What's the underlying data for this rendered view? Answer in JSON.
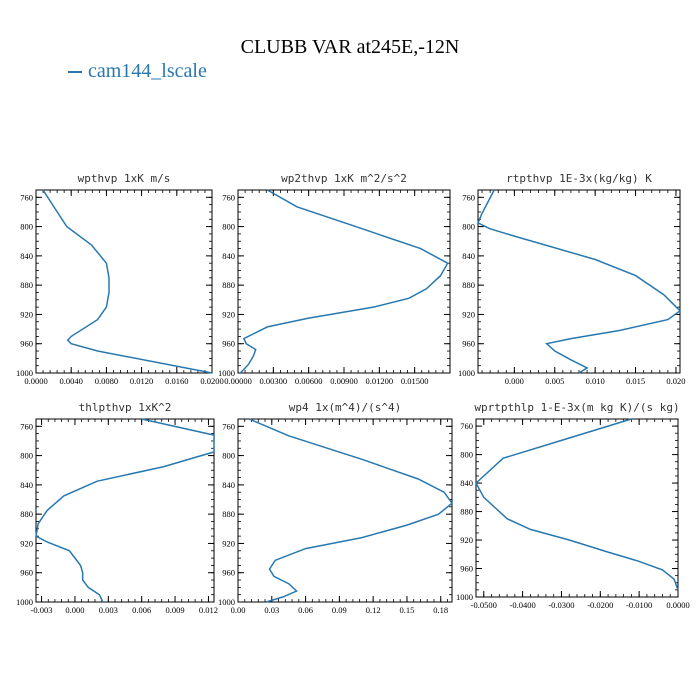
{
  "figure": {
    "title": "CLUBB VAR at245E,-12N",
    "legend": "cam144_lscale",
    "line_color": "#2878b0"
  },
  "chart_data": [
    {
      "type": "line",
      "title": "wpthvp  1xK m/s",
      "ylim": [
        1000,
        750
      ],
      "xlim": [
        0,
        0.02
      ],
      "xticks": [
        0,
        0.004,
        0.008,
        0.012,
        0.016,
        0.02
      ],
      "xtick_labels": [
        "0.0000",
        "0.0040",
        "0.0080",
        "0.0120",
        "0.0160",
        "0.0200"
      ],
      "yticks": [
        760,
        800,
        840,
        880,
        920,
        960,
        1000
      ],
      "series": [
        {
          "x": [
            0.0008,
            0.0035,
            0.0063,
            0.008,
            0.0083,
            0.0083,
            0.008,
            0.007,
            0.004,
            0.0036,
            0.004,
            0.007,
            0.02
          ],
          "y": [
            750,
            800,
            825,
            850,
            870,
            890,
            910,
            927,
            950,
            955,
            960,
            970,
            1000
          ]
        }
      ]
    },
    {
      "type": "line",
      "title": "wp2thvp  1xK m^2/s^2",
      "ylim": [
        1000,
        750
      ],
      "xlim": [
        0,
        0.018
      ],
      "xticks": [
        0,
        0.003,
        0.006,
        0.009,
        0.012,
        0.015
      ],
      "xtick_labels": [
        "0.00000",
        "0.00300",
        "0.00600",
        "0.00900",
        "0.01200",
        "0.01500"
      ],
      "yticks": [
        760,
        800,
        840,
        880,
        920,
        960,
        1000
      ],
      "series": [
        {
          "x": [
            0.0025,
            0.005,
            0.01,
            0.0155,
            0.0178,
            0.0172,
            0.016,
            0.0145,
            0.0115,
            0.006,
            0.0025,
            0.0005,
            0.0007,
            0.0015,
            0.0013,
            0.0009,
            0.0002
          ],
          "y": [
            750,
            773,
            800,
            830,
            850,
            867,
            885,
            898,
            910,
            925,
            937,
            953,
            960,
            968,
            977,
            988,
            1000
          ]
        }
      ]
    },
    {
      "type": "line",
      "title": "rtpthvp  1E-3x(kg/kg) K",
      "ylim": [
        1000,
        750
      ],
      "xlim": [
        -0.0045,
        0.0205
      ],
      "xticks": [
        0,
        0.005,
        0.01,
        0.015,
        0.02
      ],
      "xtick_labels": [
        "0.000",
        "0.005",
        "0.010",
        "0.015",
        "0.020"
      ],
      "yticks": [
        760,
        800,
        840,
        880,
        920,
        960,
        1000
      ],
      "series": [
        {
          "x": [
            -0.0025,
            -0.004,
            -0.0045,
            -0.003,
            0.0,
            0.01,
            0.015,
            0.0185,
            0.0205,
            0.019,
            0.013,
            0.007,
            0.004,
            0.005,
            0.007,
            0.009,
            0.008
          ],
          "y": [
            750,
            782,
            795,
            803,
            813,
            845,
            867,
            893,
            915,
            927,
            942,
            953,
            960,
            970,
            982,
            993,
            1000
          ]
        }
      ]
    },
    {
      "type": "line",
      "title": "thlpthvp  1xK^2",
      "ylim": [
        1000,
        750
      ],
      "xlim": [
        -0.0035,
        0.0125
      ],
      "xticks": [
        -0.003,
        0,
        0.003,
        0.006,
        0.009,
        0.012
      ],
      "xtick_labels": [
        "-0.003",
        "0.000",
        "0.003",
        "0.006",
        "0.009",
        "0.012"
      ],
      "yticks": [
        760,
        800,
        840,
        880,
        920,
        960,
        1000
      ],
      "series": [
        {
          "x": [
            0.006,
            0.0125,
            0.0125,
            0.008,
            0.002,
            -0.001,
            -0.0025,
            -0.0033,
            -0.0035,
            -0.0025,
            -0.0005,
            0.0005,
            0.0007,
            0.0007,
            0.0012,
            0.0022,
            0.0025
          ],
          "y": [
            750,
            772,
            795,
            815,
            835,
            855,
            875,
            893,
            910,
            918,
            930,
            950,
            960,
            970,
            980,
            990,
            1000
          ]
        }
      ]
    },
    {
      "type": "line",
      "title": "wp4  1x(m^4)/(s^4)",
      "ylim": [
        1000,
        750
      ],
      "xlim": [
        0,
        0.19
      ],
      "xticks": [
        0,
        0.03,
        0.06,
        0.09,
        0.12,
        0.15,
        0.18
      ],
      "xtick_labels": [
        "0.00",
        "0.03",
        "0.06",
        "0.09",
        "0.12",
        "0.15",
        "0.18"
      ],
      "yticks": [
        760,
        800,
        840,
        880,
        920,
        960,
        1000
      ],
      "series": [
        {
          "x": [
            0.01,
            0.045,
            0.11,
            0.16,
            0.183,
            0.19,
            0.178,
            0.15,
            0.11,
            0.06,
            0.033,
            0.028,
            0.032,
            0.045,
            0.052,
            0.04,
            0.025
          ],
          "y": [
            750,
            773,
            805,
            832,
            850,
            865,
            880,
            895,
            912,
            927,
            943,
            955,
            965,
            975,
            985,
            993,
            1000
          ]
        }
      ]
    },
    {
      "type": "line",
      "title": "wprtpthlp  1-E-3x(m kg K)/(s kg)",
      "ylim": [
        1000,
        750
      ],
      "xlim": [
        -0.052,
        0.0
      ],
      "xticks": [
        -0.05,
        -0.04,
        -0.03,
        -0.02,
        -0.01,
        0.0
      ],
      "xtick_labels": [
        "-0.0500",
        "-0.0400",
        "-0.0300",
        "-0.0200",
        "-0.0100",
        "0.0000"
      ],
      "yticks": [
        760,
        800,
        840,
        880,
        920,
        960,
        1000
      ],
      "series": [
        {
          "x": [
            -0.012,
            -0.03,
            -0.045,
            -0.052,
            -0.05,
            -0.047,
            -0.044,
            -0.038,
            -0.028,
            -0.018,
            -0.01,
            -0.004,
            -0.001,
            0.0
          ],
          "y": [
            750,
            780,
            805,
            840,
            860,
            875,
            890,
            905,
            920,
            937,
            950,
            962,
            975,
            990
          ]
        }
      ]
    }
  ]
}
